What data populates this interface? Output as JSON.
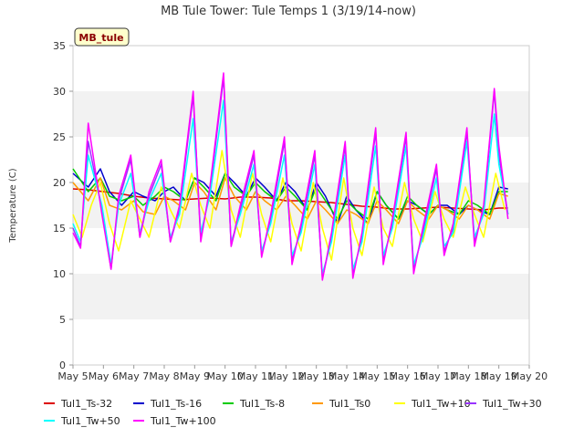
{
  "chart_data": {
    "type": "line",
    "title": "MB Tule Tower: Tule Temps 1 (3/19/14-now)",
    "ylabel": "Temperature (C)",
    "xlabel": "",
    "station_label": "MB_tule",
    "ylim": [
      0,
      35
    ],
    "yticks": [
      0,
      5,
      10,
      15,
      20,
      25,
      30,
      35
    ],
    "xlim": [
      5,
      20
    ],
    "xticks": [
      5,
      6,
      7,
      8,
      9,
      10,
      11,
      12,
      13,
      14,
      15,
      16,
      17,
      18,
      19,
      20
    ],
    "xtick_labels": [
      "May 5",
      "May 6",
      "May 7",
      "May 8",
      "May 9",
      "May 10",
      "May 11",
      "May 12",
      "May 13",
      "May 14",
      "May 15",
      "May 16",
      "May 17",
      "May 18",
      "May 19",
      "May 20"
    ],
    "grid": "horizontal bands",
    "legend_position": "bottom",
    "series": [
      {
        "name": "Tul1_Ts-32",
        "color": "#dd0000",
        "x": [
          5.0,
          5.5,
          6.0,
          6.5,
          7.0,
          7.5,
          8.0,
          8.5,
          9.0,
          9.5,
          10.0,
          10.5,
          11.0,
          11.5,
          12.0,
          12.5,
          13.0,
          13.5,
          14.0,
          14.5,
          15.0,
          15.5,
          16.0,
          16.5,
          17.0,
          17.5,
          18.0,
          18.5,
          19.0,
          19.3
        ],
        "y": [
          19.3,
          19.2,
          19.0,
          18.8,
          18.5,
          18.3,
          18.2,
          18.1,
          18.2,
          18.3,
          18.2,
          18.4,
          18.4,
          18.3,
          18.0,
          18.0,
          17.9,
          17.8,
          17.6,
          17.4,
          17.3,
          17.1,
          17.1,
          17.2,
          17.3,
          17.2,
          17.1,
          17.0,
          17.2,
          17.2
        ]
      },
      {
        "name": "Tul1_Ts-16",
        "color": "#0000cc",
        "x": [
          5.0,
          5.5,
          5.9,
          6.2,
          6.6,
          7.0,
          7.3,
          7.7,
          8.0,
          8.3,
          8.7,
          9.0,
          9.3,
          9.7,
          10.0,
          10.3,
          10.7,
          11.0,
          11.3,
          11.7,
          12.0,
          12.3,
          12.7,
          13.0,
          13.3,
          13.7,
          14.0,
          14.3,
          14.7,
          15.0,
          15.3,
          15.7,
          16.0,
          16.3,
          16.7,
          17.0,
          17.3,
          17.7,
          18.0,
          18.3,
          18.7,
          19.0,
          19.3
        ],
        "y": [
          21.0,
          19.5,
          21.5,
          19.0,
          17.5,
          19.0,
          18.5,
          18.0,
          19.0,
          19.5,
          18.0,
          20.5,
          20.0,
          18.5,
          21.0,
          20.0,
          18.5,
          20.5,
          19.5,
          18.0,
          20.0,
          19.0,
          17.0,
          20.0,
          18.5,
          15.5,
          18.5,
          17.0,
          15.5,
          19.0,
          17.5,
          16.0,
          18.0,
          17.5,
          16.5,
          17.5,
          17.5,
          16.5,
          17.5,
          17.0,
          16.5,
          19.5,
          19.3
        ]
      },
      {
        "name": "Tul1_Ts-8",
        "color": "#00cc00",
        "x": [
          5.0,
          5.5,
          5.9,
          6.2,
          6.6,
          7.0,
          7.3,
          7.7,
          8.0,
          8.3,
          8.7,
          9.0,
          9.3,
          9.7,
          10.0,
          10.3,
          10.7,
          11.0,
          11.3,
          11.7,
          12.0,
          12.3,
          12.7,
          13.0,
          13.3,
          13.7,
          14.0,
          14.3,
          14.7,
          15.0,
          15.3,
          15.7,
          16.0,
          16.3,
          16.7,
          17.0,
          17.3,
          17.7,
          18.0,
          18.3,
          18.7,
          19.0,
          19.3
        ],
        "y": [
          21.5,
          19.0,
          20.5,
          18.5,
          18.0,
          18.5,
          17.5,
          18.5,
          19.5,
          19.0,
          18.0,
          20.5,
          19.5,
          18.0,
          21.0,
          19.5,
          18.5,
          20.0,
          19.0,
          18.0,
          19.5,
          18.5,
          17.0,
          19.5,
          18.0,
          16.0,
          18.0,
          17.0,
          16.0,
          19.0,
          17.5,
          16.0,
          18.5,
          17.5,
          16.5,
          17.5,
          17.0,
          16.5,
          18.0,
          17.5,
          16.5,
          19.0,
          19.0
        ]
      },
      {
        "name": "Tul1_Ts0",
        "color": "#ff9900",
        "x": [
          5.0,
          5.5,
          5.9,
          6.2,
          6.6,
          7.0,
          7.3,
          7.7,
          8.0,
          8.3,
          8.7,
          9.0,
          9.3,
          9.7,
          10.0,
          10.3,
          10.7,
          11.0,
          11.3,
          11.7,
          12.0,
          12.3,
          12.7,
          13.0,
          13.3,
          13.7,
          14.0,
          14.3,
          14.7,
          15.0,
          15.3,
          15.7,
          16.0,
          16.3,
          16.7,
          17.0,
          17.3,
          17.7,
          18.0,
          18.3,
          18.7,
          19.0,
          19.3
        ],
        "y": [
          20.0,
          18.0,
          20.5,
          17.5,
          17.0,
          18.0,
          16.8,
          16.5,
          18.5,
          18.0,
          17.0,
          20.0,
          19.0,
          17.0,
          20.5,
          18.5,
          17.0,
          19.0,
          18.0,
          17.0,
          18.5,
          17.5,
          16.0,
          18.0,
          17.0,
          15.5,
          17.0,
          16.5,
          15.5,
          18.0,
          17.0,
          15.5,
          18.0,
          17.0,
          16.0,
          17.5,
          17.0,
          16.0,
          17.5,
          17.0,
          16.0,
          18.8,
          18.5
        ]
      },
      {
        "name": "Tul1_Tw+10",
        "color": "#ffff00",
        "x": [
          5.0,
          5.3,
          5.6,
          5.9,
          6.2,
          6.5,
          6.9,
          7.2,
          7.5,
          7.9,
          8.2,
          8.5,
          8.9,
          9.2,
          9.5,
          9.9,
          10.2,
          10.5,
          10.9,
          11.2,
          11.5,
          11.9,
          12.2,
          12.5,
          12.9,
          13.2,
          13.5,
          13.9,
          14.2,
          14.5,
          14.9,
          15.2,
          15.5,
          15.9,
          16.2,
          16.5,
          16.9,
          17.2,
          17.5,
          17.9,
          18.2,
          18.5,
          18.9,
          19.2
        ],
        "y": [
          16.5,
          14.0,
          17.5,
          20.0,
          15.5,
          12.5,
          18.0,
          16.0,
          14.0,
          19.5,
          17.0,
          15.0,
          21.0,
          17.5,
          15.0,
          23.5,
          17.0,
          14.0,
          21.0,
          16.5,
          13.5,
          20.5,
          15.5,
          12.5,
          20.0,
          15.0,
          11.5,
          20.5,
          15.0,
          12.0,
          19.5,
          15.0,
          13.0,
          20.0,
          16.0,
          13.5,
          19.0,
          16.0,
          14.0,
          19.5,
          16.5,
          14.0,
          21.0,
          17.0
        ]
      },
      {
        "name": "Tul1_Tw+30",
        "color": "#9933ff",
        "x": [
          5.0,
          5.25,
          5.5,
          5.95,
          6.25,
          6.5,
          6.9,
          7.2,
          7.5,
          7.9,
          8.2,
          8.5,
          8.95,
          9.2,
          9.5,
          9.95,
          10.2,
          10.5,
          10.95,
          11.2,
          11.5,
          11.95,
          12.2,
          12.5,
          12.95,
          13.2,
          13.5,
          13.95,
          14.2,
          14.5,
          14.95,
          15.2,
          15.5,
          15.95,
          16.2,
          16.5,
          16.95,
          17.2,
          17.5,
          17.95,
          18.2,
          18.5,
          18.85,
          19.0,
          19.3
        ],
        "y": [
          15.0,
          13.0,
          24.5,
          17.0,
          10.5,
          18.0,
          22.5,
          14.0,
          18.5,
          22.0,
          13.5,
          17.0,
          29.5,
          14.0,
          19.0,
          31.5,
          13.0,
          17.0,
          23.0,
          12.0,
          16.0,
          24.5,
          11.5,
          15.0,
          23.0,
          9.5,
          14.0,
          24.0,
          10.0,
          14.0,
          25.5,
          11.5,
          15.5,
          25.0,
          10.5,
          14.5,
          21.5,
          12.5,
          15.0,
          25.5,
          13.5,
          17.0,
          30.0,
          23.0,
          16.5
        ]
      },
      {
        "name": "Tul1_Tw+50",
        "color": "#00ffff",
        "x": [
          5.0,
          5.25,
          5.5,
          5.95,
          6.25,
          6.5,
          6.9,
          7.2,
          7.5,
          7.9,
          8.2,
          8.5,
          8.95,
          9.2,
          9.5,
          9.95,
          10.2,
          10.5,
          10.95,
          11.2,
          11.5,
          11.95,
          12.2,
          12.5,
          12.95,
          13.2,
          13.5,
          13.95,
          14.2,
          14.5,
          14.95,
          15.2,
          15.5,
          15.95,
          16.2,
          16.5,
          16.95,
          17.2,
          17.5,
          17.95,
          18.2,
          18.5,
          18.85,
          19.0,
          19.3
        ],
        "y": [
          15.5,
          13.5,
          23.0,
          17.5,
          11.0,
          17.5,
          21.0,
          14.5,
          18.0,
          21.0,
          14.0,
          16.5,
          27.0,
          14.5,
          18.5,
          29.0,
          13.5,
          16.5,
          22.0,
          12.5,
          15.5,
          23.0,
          12.0,
          14.5,
          22.0,
          10.0,
          13.5,
          23.0,
          10.5,
          13.5,
          24.0,
          12.0,
          15.0,
          24.0,
          11.0,
          14.0,
          20.5,
          13.0,
          14.5,
          24.5,
          14.0,
          16.5,
          27.5,
          22.0,
          16.5
        ]
      },
      {
        "name": "Tul1_Tw+100",
        "color": "#ff00ff",
        "x": [
          5.0,
          5.25,
          5.5,
          5.95,
          6.25,
          6.5,
          6.9,
          7.2,
          7.5,
          7.9,
          8.2,
          8.5,
          8.95,
          9.2,
          9.5,
          9.95,
          10.2,
          10.5,
          10.95,
          11.2,
          11.5,
          11.95,
          12.2,
          12.5,
          12.95,
          13.2,
          13.5,
          13.95,
          14.2,
          14.5,
          14.95,
          15.2,
          15.5,
          15.95,
          16.2,
          16.5,
          16.95,
          17.2,
          17.5,
          17.95,
          18.2,
          18.5,
          18.85,
          19.0,
          19.3
        ],
        "y": [
          14.5,
          12.8,
          26.5,
          16.5,
          10.5,
          18.5,
          23.0,
          14.0,
          19.0,
          22.5,
          13.5,
          17.5,
          30.0,
          13.5,
          19.5,
          32.0,
          13.0,
          17.5,
          23.5,
          11.8,
          16.5,
          25.0,
          11.0,
          15.5,
          23.5,
          9.3,
          14.5,
          24.5,
          9.5,
          14.5,
          26.0,
          11.0,
          16.0,
          25.5,
          10.0,
          15.0,
          22.0,
          12.0,
          15.5,
          26.0,
          13.0,
          17.5,
          30.3,
          24.0,
          16.0
        ]
      }
    ]
  }
}
